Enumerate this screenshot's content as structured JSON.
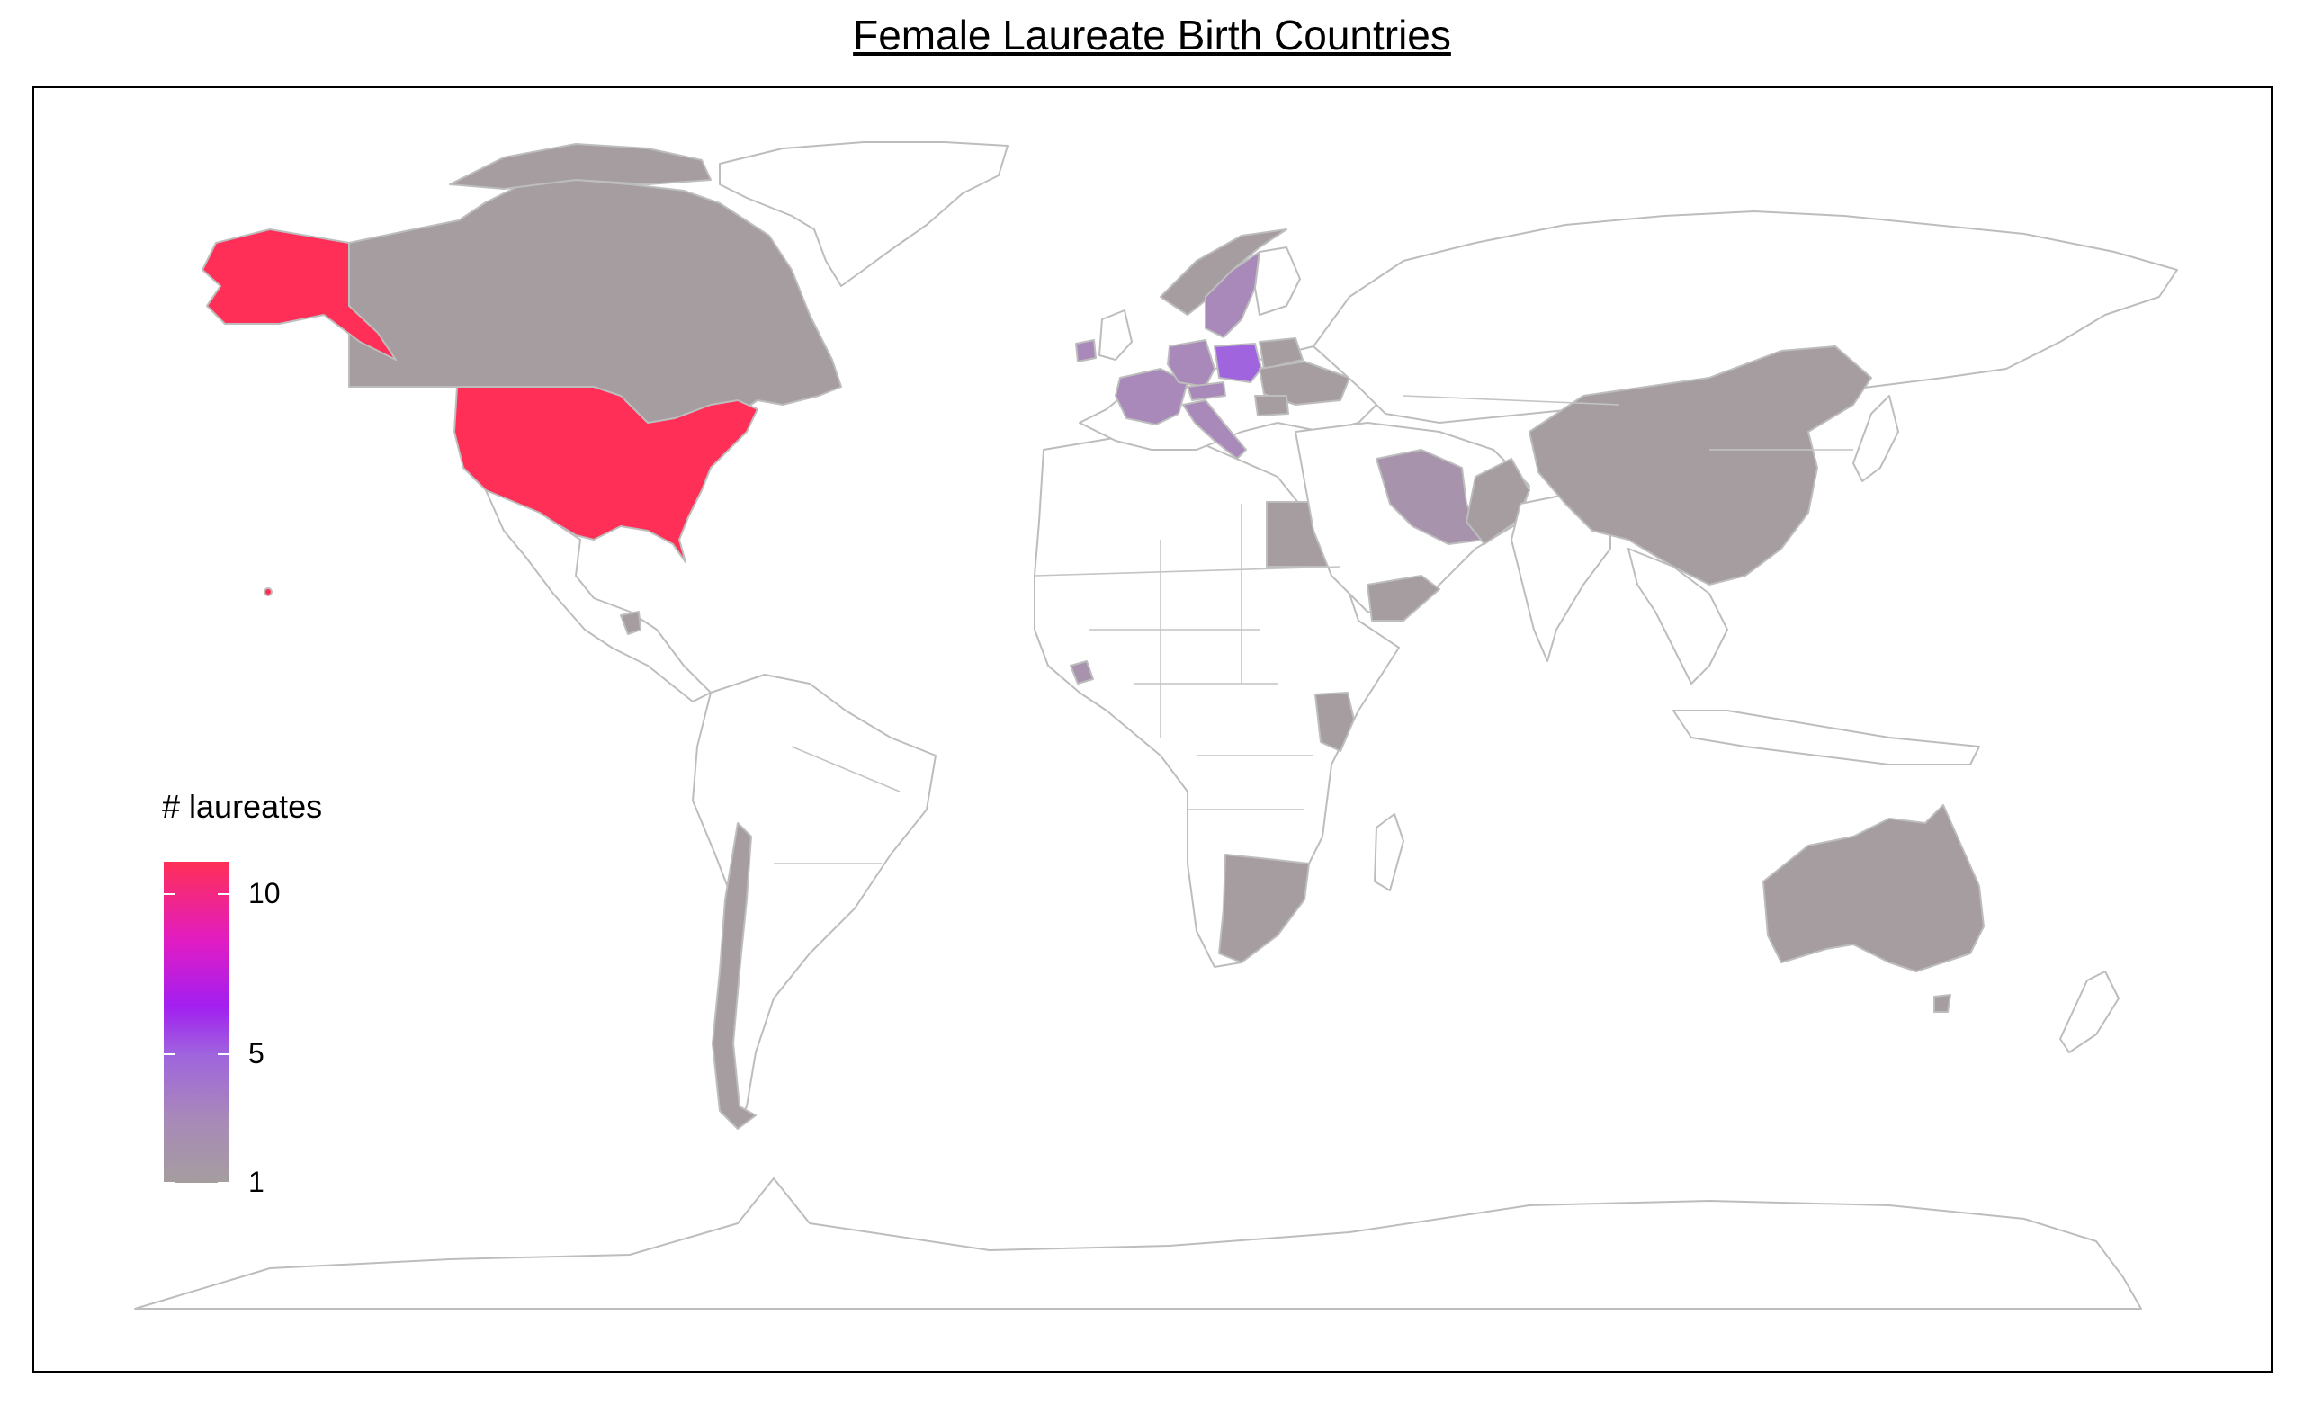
{
  "title": "Female Laureate Birth Countries",
  "legend": {
    "title": "# laureates",
    "min": 1,
    "max": 11,
    "ticks": [
      {
        "value": 1,
        "label": "1"
      },
      {
        "value": 5,
        "label": "5"
      },
      {
        "value": 10,
        "label": "10"
      }
    ]
  },
  "color_scale": {
    "stops": [
      {
        "value": 1,
        "color": "#a59d9f"
      },
      {
        "value": 3,
        "color": "#a889b9"
      },
      {
        "value": 5,
        "color": "#9f64de"
      },
      {
        "value": 6.5,
        "color": "#a21ff0"
      },
      {
        "value": 8.5,
        "color": "#e01cc4"
      },
      {
        "value": 11,
        "color": "#ff2f57"
      }
    ],
    "no_data_fill": "#ffffff",
    "border_color": "#bdbdbd"
  },
  "countries": [
    {
      "id": "usa",
      "name": "United States",
      "laureates": 11
    },
    {
      "id": "alaska",
      "name": "United States (Alaska)",
      "laureates": 11
    },
    {
      "id": "hawaii",
      "name": "United States (Hawaii)",
      "laureates": 11
    },
    {
      "id": "canada",
      "name": "Canada",
      "laureates": 1
    },
    {
      "id": "guatemala",
      "name": "Guatemala",
      "laureates": 1
    },
    {
      "id": "chile",
      "name": "Chile",
      "laureates": 1
    },
    {
      "id": "ireland",
      "name": "Ireland",
      "laureates": 3
    },
    {
      "id": "uk",
      "name": "United Kingdom",
      "laureates": 0
    },
    {
      "id": "france",
      "name": "France",
      "laureates": 3
    },
    {
      "id": "germany",
      "name": "Germany",
      "laureates": 3
    },
    {
      "id": "poland",
      "name": "Poland",
      "laureates": 5
    },
    {
      "id": "sweden",
      "name": "Sweden",
      "laureates": 3
    },
    {
      "id": "norway",
      "name": "Norway",
      "laureates": 1
    },
    {
      "id": "austria",
      "name": "Austria",
      "laureates": 3
    },
    {
      "id": "italy",
      "name": "Italy",
      "laureates": 3
    },
    {
      "id": "belarus",
      "name": "Belarus",
      "laureates": 1
    },
    {
      "id": "ukraine",
      "name": "Ukraine",
      "laureates": 1
    },
    {
      "id": "romania",
      "name": "Romania",
      "laureates": 1
    },
    {
      "id": "egypt",
      "name": "Egypt",
      "laureates": 1
    },
    {
      "id": "yemen",
      "name": "Yemen",
      "laureates": 1
    },
    {
      "id": "iran",
      "name": "Iran",
      "laureates": 2
    },
    {
      "id": "pakistan",
      "name": "Pakistan",
      "laureates": 1
    },
    {
      "id": "india",
      "name": "India",
      "laureates": 0
    },
    {
      "id": "china",
      "name": "China",
      "laureates": 1
    },
    {
      "id": "liberia",
      "name": "Liberia",
      "laureates": 2
    },
    {
      "id": "kenya",
      "name": "Kenya",
      "laureates": 1
    },
    {
      "id": "south-africa",
      "name": "South Africa",
      "laureates": 1
    },
    {
      "id": "australia",
      "name": "Australia",
      "laureates": 1
    }
  ]
}
